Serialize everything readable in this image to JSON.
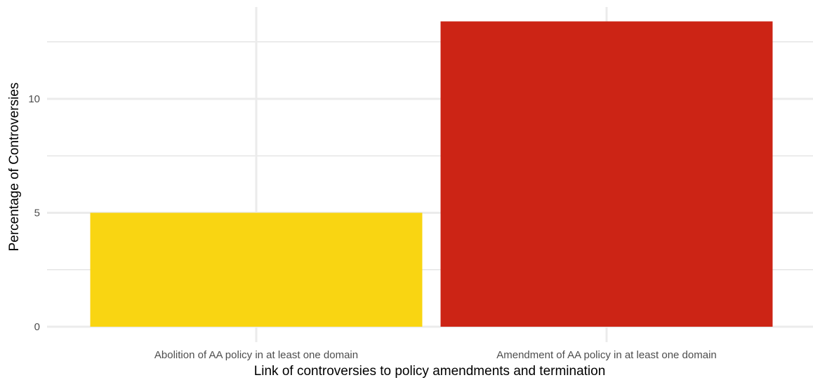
{
  "chart_data": {
    "type": "bar",
    "title": "",
    "xlabel": "Link of controversies to policy amendments and termination",
    "ylabel": "Percentage of Controversies",
    "categories": [
      "Abolition of AA policy in at least one domain",
      "Amendment of AA policy in at least one domain"
    ],
    "values": [
      5.0,
      13.4
    ],
    "ylim": [
      0,
      14
    ],
    "yticks": [
      0,
      5,
      10
    ],
    "ytick_labels": [
      "0",
      "5",
      "10"
    ],
    "grid": true,
    "legend": "none",
    "bar_colors": [
      "#F9D512",
      "#CC2415"
    ],
    "grid_color": "#EBEBEB"
  }
}
